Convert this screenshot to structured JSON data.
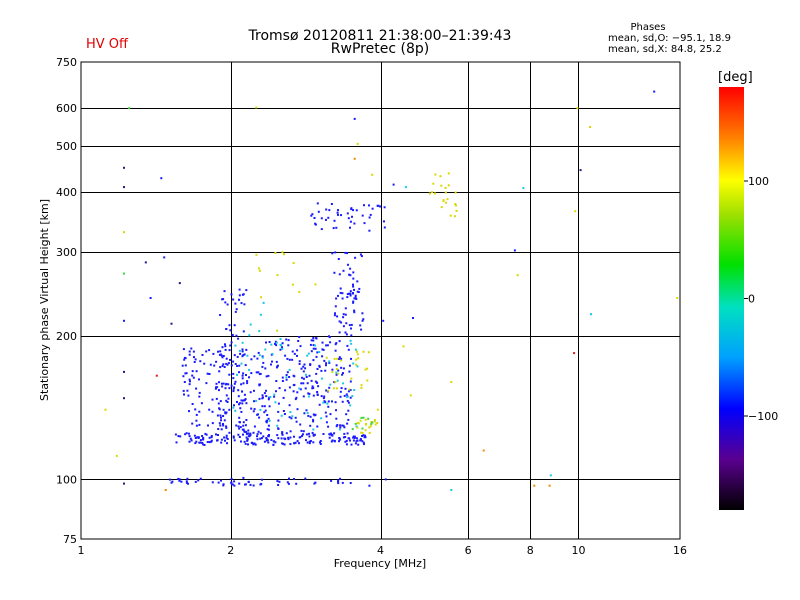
{
  "header": {
    "hv_status": "HV Off",
    "title_line1": "Tromsø 20120811 21:38:00–21:39:43",
    "title_line2": "RwPretec (8p)",
    "phases_title": "Phases",
    "phases_o": "mean, sd,O: −95.1, 18.9",
    "phases_x": "mean, sd,X:  84.8, 25.2"
  },
  "colorbar": {
    "unit": "[deg]",
    "ticks": [
      "100",
      "0",
      "−100"
    ],
    "tick_values": [
      100,
      0,
      -100
    ],
    "range": [
      -180,
      180
    ]
  },
  "chart_data": {
    "type": "scatter",
    "xlabel": "Frequency [MHz]",
    "ylabel": "Stationary phase Virtual Height [km]",
    "x_scale": "log",
    "y_scale": "log",
    "xlim": [
      1,
      16
    ],
    "ylim": [
      75,
      750
    ],
    "x_ticks": [
      1,
      2,
      4,
      6,
      8,
      10,
      16
    ],
    "x_tick_labels": [
      "1",
      "2",
      "4",
      "6",
      "8",
      "10",
      "16"
    ],
    "y_ticks": [
      75,
      100,
      200,
      300,
      400,
      500,
      600,
      750
    ],
    "y_tick_labels": [
      "75",
      "100",
      "200",
      "300",
      "400",
      "500",
      "600",
      "750"
    ],
    "grid": true,
    "colors": {
      "blue": "#1a1aff",
      "cyan": "#18c8e6",
      "yellow": "#d8d800",
      "green": "#38d838",
      "orange": "#f08800",
      "red": "#e01818",
      "navy": "#1a1a8c"
    },
    "clusters": [
      {
        "fmin": 1.55,
        "fmax": 3.75,
        "hmin": 118,
        "hmax": 125,
        "n": 190,
        "color": "blue"
      },
      {
        "fmin": 1.6,
        "fmax": 2.4,
        "hmin": 125,
        "hmax": 190,
        "n": 180,
        "color": "blue"
      },
      {
        "fmin": 1.9,
        "fmax": 2.15,
        "hmin": 125,
        "hmax": 250,
        "n": 90,
        "color": "blue"
      },
      {
        "fmin": 2.35,
        "fmax": 3.0,
        "hmin": 125,
        "hmax": 200,
        "n": 120,
        "color": "blue"
      },
      {
        "fmin": 2.9,
        "fmax": 3.5,
        "hmin": 128,
        "hmax": 200,
        "n": 100,
        "color": "blue"
      },
      {
        "fmin": 3.2,
        "fmax": 3.7,
        "hmin": 200,
        "hmax": 300,
        "n": 70,
        "color": "blue"
      },
      {
        "fmin": 2.9,
        "fmax": 4.1,
        "hmin": 330,
        "hmax": 380,
        "n": 45,
        "color": "blue"
      },
      {
        "fmin": 1.5,
        "fmax": 3.5,
        "hmin": 97,
        "hmax": 101,
        "n": 55,
        "color": "blue"
      },
      {
        "fmin": 2.4,
        "fmax": 3.6,
        "hmin": 125,
        "hmax": 200,
        "n": 45,
        "color": "cyan"
      },
      {
        "fmin": 2.0,
        "fmax": 2.4,
        "hmin": 130,
        "hmax": 240,
        "n": 20,
        "color": "cyan"
      },
      {
        "fmin": 3.1,
        "fmax": 3.8,
        "hmin": 150,
        "hmax": 190,
        "n": 25,
        "color": "yellow"
      },
      {
        "fmin": 3.5,
        "fmax": 4.0,
        "hmin": 125,
        "hmax": 135,
        "n": 18,
        "color": "yellow"
      },
      {
        "fmin": 5.0,
        "fmax": 5.7,
        "hmin": 355,
        "hmax": 440,
        "n": 22,
        "color": "yellow"
      },
      {
        "fmin": 2.2,
        "fmax": 3.0,
        "hmin": 240,
        "hmax": 300,
        "n": 12,
        "color": "yellow"
      },
      {
        "fmin": 3.5,
        "fmax": 3.9,
        "hmin": 125,
        "hmax": 135,
        "n": 8,
        "color": "green"
      }
    ],
    "points": [
      {
        "f": 1.22,
        "h": 450,
        "color": "navy"
      },
      {
        "f": 1.22,
        "h": 410,
        "color": "navy"
      },
      {
        "f": 1.45,
        "h": 428,
        "color": "blue"
      },
      {
        "f": 1.25,
        "h": 600,
        "color": "green"
      },
      {
        "f": 2.25,
        "h": 602,
        "color": "yellow"
      },
      {
        "f": 3.55,
        "h": 570,
        "color": "blue"
      },
      {
        "f": 9.95,
        "h": 600,
        "color": "yellow"
      },
      {
        "f": 10.55,
        "h": 548,
        "color": "yellow"
      },
      {
        "f": 14.2,
        "h": 650,
        "color": "blue"
      },
      {
        "f": 10.1,
        "h": 445,
        "color": "navy"
      },
      {
        "f": 7.75,
        "h": 408,
        "color": "cyan"
      },
      {
        "f": 9.85,
        "h": 365,
        "color": "yellow"
      },
      {
        "f": 7.45,
        "h": 302,
        "color": "blue"
      },
      {
        "f": 7.55,
        "h": 268,
        "color": "yellow"
      },
      {
        "f": 10.6,
        "h": 222,
        "color": "cyan"
      },
      {
        "f": 9.8,
        "h": 184,
        "color": "red"
      },
      {
        "f": 6.45,
        "h": 115,
        "color": "orange"
      },
      {
        "f": 8.15,
        "h": 97,
        "color": "orange"
      },
      {
        "f": 8.75,
        "h": 97,
        "color": "orange"
      },
      {
        "f": 8.8,
        "h": 102,
        "color": "cyan"
      },
      {
        "f": 5.55,
        "h": 95,
        "color": "cyan"
      },
      {
        "f": 15.8,
        "h": 240,
        "color": "yellow"
      },
      {
        "f": 1.22,
        "h": 330,
        "color": "yellow"
      },
      {
        "f": 1.22,
        "h": 270,
        "color": "green"
      },
      {
        "f": 1.22,
        "h": 215,
        "color": "blue"
      },
      {
        "f": 1.22,
        "h": 168,
        "color": "navy"
      },
      {
        "f": 1.22,
        "h": 148,
        "color": "navy"
      },
      {
        "f": 1.12,
        "h": 140,
        "color": "yellow"
      },
      {
        "f": 1.18,
        "h": 112,
        "color": "yellow"
      },
      {
        "f": 1.22,
        "h": 98,
        "color": "navy"
      },
      {
        "f": 1.35,
        "h": 285,
        "color": "navy"
      },
      {
        "f": 1.47,
        "h": 292,
        "color": "blue"
      },
      {
        "f": 1.38,
        "h": 240,
        "color": "blue"
      },
      {
        "f": 1.42,
        "h": 165,
        "color": "red"
      },
      {
        "f": 1.58,
        "h": 258,
        "color": "navy"
      },
      {
        "f": 1.52,
        "h": 212,
        "color": "navy"
      },
      {
        "f": 1.48,
        "h": 95,
        "color": "orange"
      },
      {
        "f": 2.48,
        "h": 205,
        "color": "yellow"
      },
      {
        "f": 4.25,
        "h": 415,
        "color": "blue"
      },
      {
        "f": 4.5,
        "h": 410,
        "color": "cyan"
      },
      {
        "f": 4.05,
        "h": 215,
        "color": "blue"
      },
      {
        "f": 4.65,
        "h": 218,
        "color": "blue"
      },
      {
        "f": 4.6,
        "h": 150,
        "color": "yellow"
      },
      {
        "f": 5.55,
        "h": 160,
        "color": "yellow"
      },
      {
        "f": 4.45,
        "h": 190,
        "color": "yellow"
      },
      {
        "f": 3.95,
        "h": 140,
        "color": "yellow"
      },
      {
        "f": 3.6,
        "h": 505,
        "color": "yellow"
      },
      {
        "f": 3.55,
        "h": 470,
        "color": "orange"
      },
      {
        "f": 3.85,
        "h": 435,
        "color": "yellow"
      },
      {
        "f": 4.1,
        "h": 100,
        "color": "blue"
      },
      {
        "f": 3.8,
        "h": 97,
        "color": "blue"
      }
    ]
  }
}
